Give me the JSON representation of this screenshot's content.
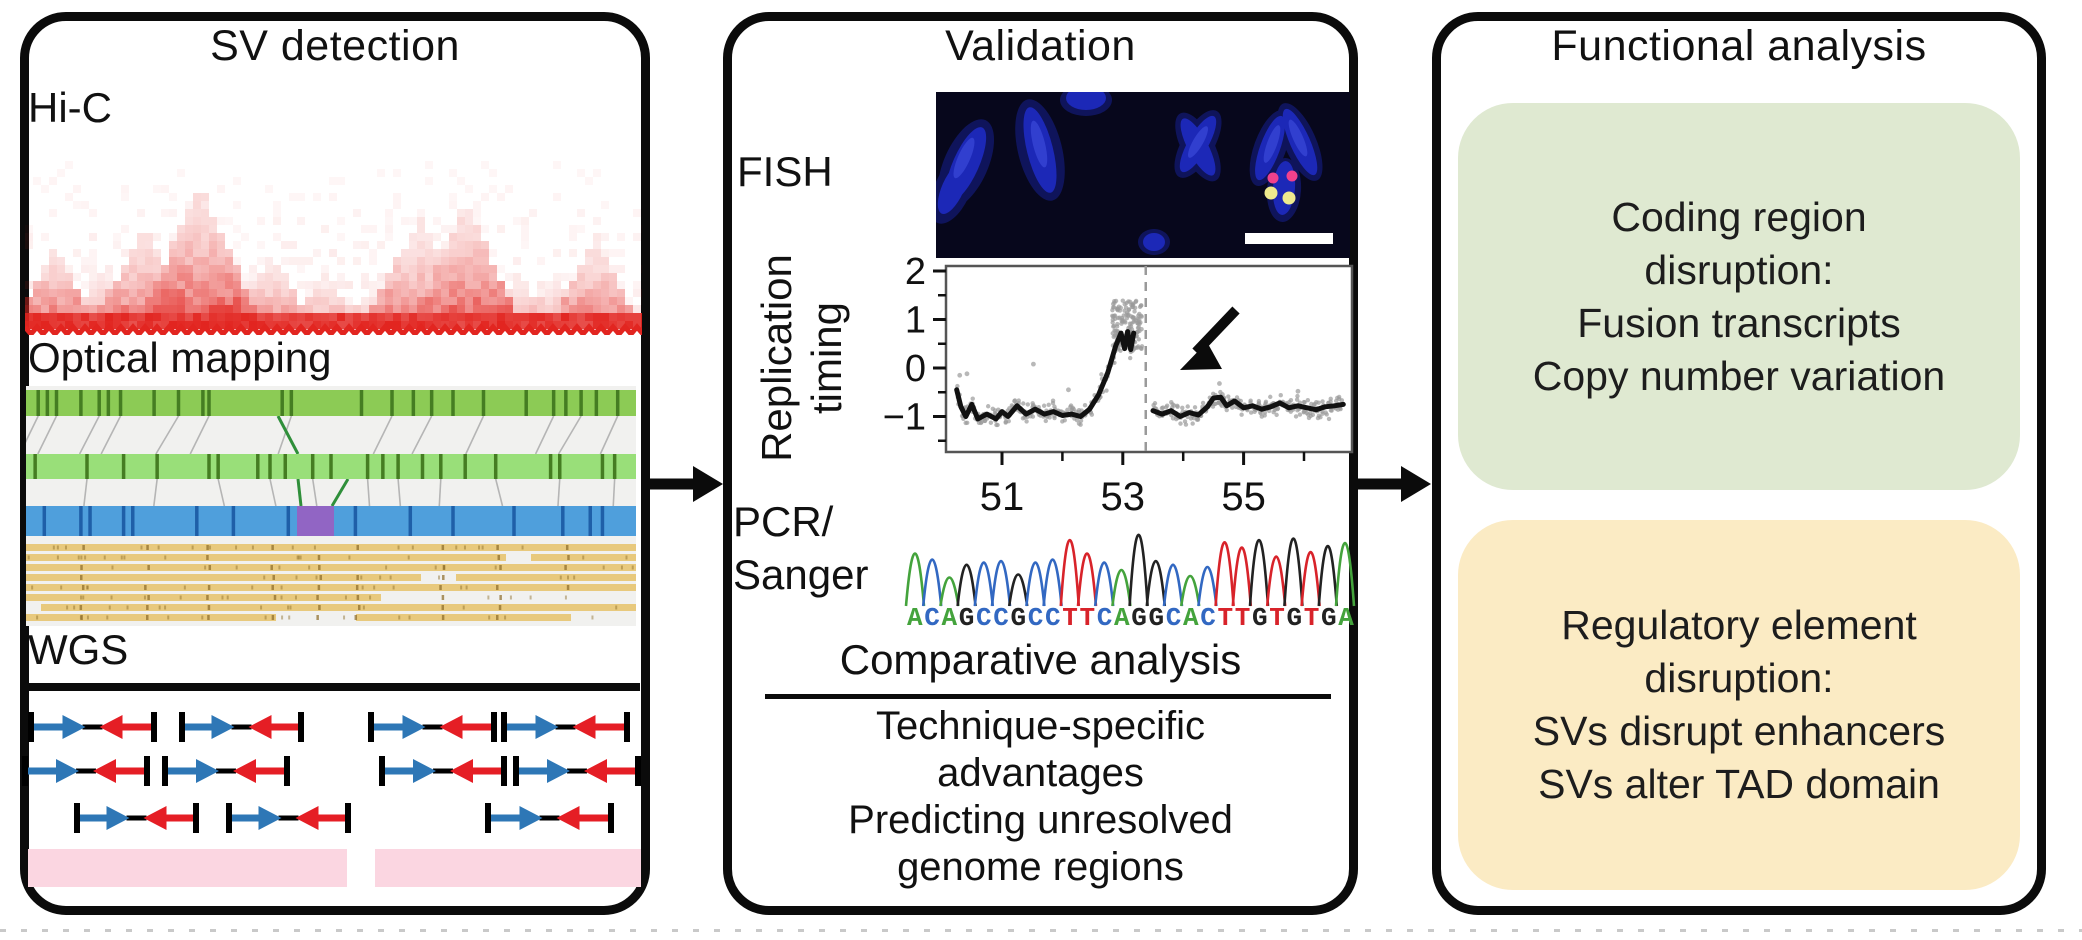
{
  "panel1": {
    "title": "SV detection",
    "hic_label": "Hi-C",
    "optical_label": "Optical mapping",
    "wgs_label": "WGS"
  },
  "panel2": {
    "title": "Validation",
    "fish_label": "FISH",
    "replication_label": [
      "Replication",
      "timing"
    ],
    "pcr_label": "PCR/",
    "sanger_label": "Sanger",
    "comparative_heading": "Comparative analysis",
    "notes": [
      "Technique-specific",
      "advantages",
      "Predicting unresolved",
      "genome regions"
    ]
  },
  "panel3": {
    "title": "Functional analysis",
    "green_box": {
      "lines": [
        "Coding region",
        "disruption:",
        "Fusion transcripts",
        "Copy number variation"
      ]
    },
    "yellow_box": {
      "lines": [
        "Regulatory element",
        "disruption:",
        "SVs disrupt enhancers",
        "SVs alter TAD domain"
      ]
    }
  },
  "sanger": {
    "sequence": "ACAGCCGCCTTCAGGCACTTGTGTGA",
    "base_colors": {
      "A": "#44a33c",
      "C": "#3268c2",
      "G": "#222222",
      "T": "#d8232a"
    },
    "peak_heights": [
      70,
      62,
      38,
      55,
      58,
      60,
      42,
      58,
      62,
      88,
      70,
      58,
      48,
      95,
      60,
      55,
      40,
      52,
      85,
      78,
      88,
      66,
      90,
      72,
      80,
      84
    ]
  },
  "chart_data": {
    "type": "scatter",
    "title": "",
    "ylabel": "Replication timing",
    "xlabel": "",
    "x_ticks": [
      51,
      53,
      55
    ],
    "x_minor_ticks": [
      52,
      54,
      56
    ],
    "y_ticks": [
      2,
      1,
      0,
      -1
    ],
    "y_minor_ticks": [
      1.5,
      0.5,
      -0.5,
      -1.5
    ],
    "xlim": [
      50.07,
      56.8
    ],
    "ylim": [
      -1.73,
      2.1
    ],
    "grid": false,
    "legend": false,
    "breakpoint_x": 53.38,
    "annotation": "black arrow pointing to replication-timing shift at breakpoint",
    "series": [
      {
        "name": "smoothed timing (left of breakpoint)",
        "points": [
          [
            50.25,
            -0.45
          ],
          [
            50.32,
            -0.8
          ],
          [
            50.4,
            -1.0
          ],
          [
            50.5,
            -0.75
          ],
          [
            50.6,
            -1.05
          ],
          [
            50.75,
            -0.95
          ],
          [
            50.9,
            -1.05
          ],
          [
            51.0,
            -0.9
          ],
          [
            51.1,
            -1.0
          ],
          [
            51.25,
            -0.78
          ],
          [
            51.4,
            -0.95
          ],
          [
            51.55,
            -0.85
          ],
          [
            51.7,
            -0.95
          ],
          [
            51.85,
            -0.9
          ],
          [
            52.0,
            -0.98
          ],
          [
            52.15,
            -0.95
          ],
          [
            52.3,
            -1.0
          ],
          [
            52.45,
            -0.85
          ],
          [
            52.6,
            -0.55
          ],
          [
            52.75,
            -0.1
          ],
          [
            52.88,
            0.45
          ],
          [
            52.97,
            0.72
          ],
          [
            53.03,
            0.4
          ],
          [
            53.08,
            0.75
          ],
          [
            53.13,
            0.38
          ],
          [
            53.18,
            0.72
          ]
        ]
      },
      {
        "name": "smoothed timing (right of breakpoint)",
        "points": [
          [
            53.5,
            -0.88
          ],
          [
            53.65,
            -0.95
          ],
          [
            53.8,
            -0.88
          ],
          [
            53.95,
            -1.0
          ],
          [
            54.1,
            -0.92
          ],
          [
            54.25,
            -0.97
          ],
          [
            54.4,
            -0.8
          ],
          [
            54.5,
            -0.62
          ],
          [
            54.62,
            -0.6
          ],
          [
            54.72,
            -0.78
          ],
          [
            54.85,
            -0.68
          ],
          [
            55.0,
            -0.82
          ],
          [
            55.15,
            -0.78
          ],
          [
            55.3,
            -0.85
          ],
          [
            55.45,
            -0.8
          ],
          [
            55.6,
            -0.72
          ],
          [
            55.75,
            -0.82
          ],
          [
            55.9,
            -0.78
          ],
          [
            56.05,
            -0.82
          ],
          [
            56.2,
            -0.86
          ],
          [
            56.35,
            -0.8
          ],
          [
            56.5,
            -0.78
          ],
          [
            56.65,
            -0.75
          ]
        ]
      }
    ],
    "scatter_outliers": [
      [
        51.52,
        0.08
      ],
      [
        50.42,
        -0.12
      ],
      [
        52.1,
        -0.45
      ],
      [
        54.6,
        -0.32
      ],
      [
        55.9,
        -0.48
      ],
      [
        50.3,
        -0.15
      ]
    ]
  },
  "wgs_reads": {
    "rows": [
      {
        "y": 727,
        "pairs": [
          [
            31,
            154
          ],
          [
            182,
            301
          ],
          [
            371,
            494
          ],
          [
            504,
            627
          ]
        ]
      },
      {
        "y": 771,
        "pairs": [
          [
            25,
            147
          ],
          [
            165,
            287
          ],
          [
            382,
            504
          ],
          [
            516,
            638
          ]
        ]
      },
      {
        "y": 818,
        "pairs": [
          [
            77,
            196
          ],
          [
            229,
            348
          ],
          [
            488,
            611
          ]
        ]
      }
    ]
  },
  "optical_mapping": {
    "bar1_ticks": [
      0.02,
      0.035,
      0.05,
      0.09,
      0.12,
      0.135,
      0.155,
      0.21,
      0.25,
      0.29,
      0.3,
      0.42,
      0.435,
      0.55,
      0.6,
      0.635,
      0.665,
      0.7,
      0.75,
      0.82,
      0.865,
      0.885,
      0.91,
      0.935,
      0.97
    ],
    "bar2_ticks": [
      0.015,
      0.1,
      0.16,
      0.215,
      0.3,
      0.315,
      0.38,
      0.4,
      0.425,
      0.47,
      0.5,
      0.56,
      0.585,
      0.61,
      0.65,
      0.68,
      0.72,
      0.77,
      0.86,
      0.875,
      0.945,
      0.965
    ],
    "blue_ticks": [
      0.03,
      0.09,
      0.105,
      0.16,
      0.175,
      0.28,
      0.34,
      0.43,
      0.45,
      0.49,
      0.54,
      0.63,
      0.7,
      0.8,
      0.88,
      0.925,
      0.945
    ],
    "purple_segment": [
      271,
      308
    ],
    "tan_rows": [
      [
        [
          0,
          610
        ]
      ],
      [
        [
          0,
          480
        ],
        [
          505,
          610
        ]
      ],
      [
        [
          0,
          610
        ]
      ],
      [
        [
          0,
          395
        ],
        [
          430,
          610
        ]
      ],
      [
        [
          0,
          610
        ]
      ],
      [
        [
          0,
          355
        ]
      ],
      [
        [
          15,
          610
        ]
      ],
      [
        [
          0,
          250
        ],
        [
          330,
          545
        ]
      ]
    ]
  },
  "hic_tads": [
    [
      0.05,
      0.07,
      85,
      0.8
    ],
    [
      0.125,
      0.06,
      60,
      0.6
    ],
    [
      0.195,
      0.09,
      105,
      0.75
    ],
    [
      0.283,
      0.105,
      145,
      0.9
    ],
    [
      0.36,
      0.05,
      55,
      0.55
    ],
    [
      0.4,
      0.07,
      75,
      0.6
    ],
    [
      0.488,
      0.06,
      60,
      0.5
    ],
    [
      0.565,
      0.05,
      45,
      0.45
    ],
    [
      0.64,
      0.1,
      110,
      0.7
    ],
    [
      0.715,
      0.09,
      130,
      0.85
    ],
    [
      0.8,
      0.055,
      60,
      0.5
    ],
    [
      0.86,
      0.05,
      55,
      0.55
    ],
    [
      0.925,
      0.075,
      95,
      0.7
    ]
  ],
  "colors": {
    "hic_red": "#e22520",
    "om_bar1_green": "#8ccb55",
    "om_bar2_green": "#99df79",
    "om_tick_green": "#457d22",
    "om_blue": "#4f9fdc",
    "om_blue_tick": "#1f5fa8",
    "om_purple": "#9165c4",
    "om_tan": "#e8c97d",
    "om_speck": "#8a6a26",
    "om_connector": "#b5b5b5",
    "om_green_line": "#2f8f3a",
    "om_background": "#f1f1ef",
    "read_blue": "#2e77b6",
    "read_red": "#e51e25",
    "pink_block": "#fbd6e1",
    "scatter_gray": "#9a9a9a",
    "line_black": "#111111",
    "fish_bg": "#07071c",
    "fish_chromosome": "#1e2ac0",
    "fish_chromosome_glow": "#2233dd",
    "fish_probe_pink": "#f0418c",
    "fish_probe_yellow": "#eeea8e",
    "green_box": "#dfe9d1",
    "yellow_box": "#fbebc4"
  }
}
